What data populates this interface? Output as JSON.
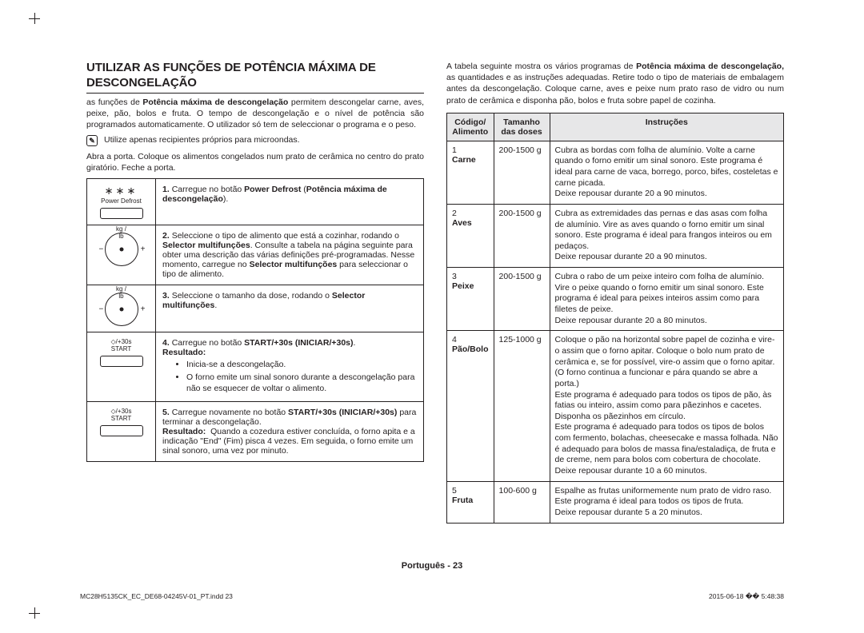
{
  "title": "UTILIZAR AS FUNÇÕES DE POTÊNCIA MÁXIMA DE DESCONGELAÇÃO",
  "intro1": "as funções de ",
  "intro1b": "Potência máxima de descongelação",
  "intro1c": " permitem descongelar carne, aves, peixe, pão, bolos e fruta. O tempo de descongelação e o nível de potência são programados automaticamente. O utilizador só tem de seleccionar o programa e o peso.",
  "noteIcon": "✎",
  "note": "Utilize apenas recipientes próprios para microondas.",
  "intro2": "Abra a porta. Coloque os alimentos congelados num prato de cerâmica no centro do prato giratório. Feche a porta.",
  "powerDefrostLabel": "Power Defrost",
  "step1": {
    "num": "1.",
    "t1": "Carregue no botão ",
    "b1": "Power Defrost",
    "t2": " (",
    "b2": "Potência máxima de descongelação",
    "t3": ")."
  },
  "dialTop": "kg / lb",
  "step2": {
    "num": "2.",
    "t1": "Seleccione o tipo de alimento que está a cozinhar, rodando o ",
    "b1": "Selector multifunções",
    "t2": ". Consulte a tabela na página seguinte para obter uma descrição das várias definições pré-programadas. Nesse momento, carregue no ",
    "b2": "Selector multifunções",
    "t3": " para seleccionar o tipo de alimento."
  },
  "step3": {
    "num": "3.",
    "t1": "Seleccione o tamanho da dose, rodando o ",
    "b1": "Selector multifunções",
    "t2": "."
  },
  "startLabel": "/+30s",
  "startSub": "START",
  "step4": {
    "num": "4.",
    "t1": "Carregue no botão ",
    "b1": "START/+30s (INICIAR/+30s)",
    "t2": ".",
    "res": "Resultado:",
    "bul": [
      "Inicia-se a descongelação.",
      "O forno emite um sinal sonoro durante a descongelação para não se esquecer de voltar o alimento."
    ]
  },
  "step5": {
    "num": "5.",
    "t1": "Carregue novamente no botão ",
    "b1": "START/+30s (INICIAR/+30s)",
    "t2": " para terminar a descongelação.",
    "res": "Resultado:",
    "t3": "Quando a cozedura estiver concluída, o forno apita e a indicação \"End\" (Fim) pisca 4 vezes. Em seguida, o forno emite um sinal sonoro, uma vez por minuto."
  },
  "rightIntro1": "A tabela seguinte mostra os vários programas de ",
  "rightIntroB": "Potência máxima de descongelação,",
  "rightIntro2": " as quantidades e as instruções adequadas. Retire todo o tipo de materiais de embalagem antes da descongelação. Coloque carne, aves e peixe num prato raso de vidro ou num prato de cerâmica e disponha pão, bolos e fruta sobre papel de cozinha.",
  "headers": {
    "code": "Código/ Alimento",
    "size": "Tamanho das doses",
    "instr": "Instruções"
  },
  "rows": [
    {
      "codeNum": "1",
      "codeName": "Carne",
      "size": "200-1500 g",
      "instr": "Cubra as bordas com folha de alumínio. Volte a carne quando o forno emitir um sinal sonoro. Este programa é ideal para carne de vaca, borrego, porco, bifes, costeletas e carne picada.\nDeixe repousar durante 20 a 90 minutos."
    },
    {
      "codeNum": "2",
      "codeName": "Aves",
      "size": "200-1500 g",
      "instr": "Cubra as extremidades das pernas e das asas com folha de alumínio. Vire as aves quando o forno emitir um sinal sonoro. Este programa é ideal para frangos inteiros ou em pedaços.\nDeixe repousar durante 20 a 90 minutos."
    },
    {
      "codeNum": "3",
      "codeName": "Peixe",
      "size": "200-1500 g",
      "instr": "Cubra o rabo de um peixe inteiro com folha de alumínio. Vire o peixe quando o forno emitir um sinal sonoro. Este programa é ideal para peixes inteiros assim como para filetes de peixe.\nDeixe repousar durante 20 a 80 minutos."
    },
    {
      "codeNum": "4",
      "codeName": "Pão/Bolo",
      "size": "125-1000 g",
      "instr": "Coloque o pão na horizontal sobre papel de cozinha e vire-o assim que o forno apitar. Coloque o bolo num prato de cerâmica e, se for possível, vire-o assim que o forno apitar.\n(O forno continua a funcionar e pára quando se abre a porta.)\nEste programa é adequado para todos os tipos de pão, às fatias ou inteiro, assim como para pãezinhos e cacetes. Disponha os pãezinhos em círculo.\nEste programa é adequado para todos os tipos de bolos com fermento, bolachas, cheesecake e massa folhada. Não é adequado para bolos de massa fina/estaladiça, de fruta e de creme, nem para bolos com cobertura de chocolate.\nDeixe repousar durante 10 a 60 minutos."
    },
    {
      "codeNum": "5",
      "codeName": "Fruta",
      "size": "100-600 g",
      "instr": "Espalhe as frutas uniformemente num prato de vidro raso.\nEste programa é ideal para todos os tipos de fruta.\nDeixe repousar durante 5 a 20 minutos."
    }
  ],
  "footer": {
    "lang": "Português - ",
    "page": "23"
  },
  "footline": {
    "file": "MC28H5135CK_EC_DE68-04245V-01_PT.indd   23",
    "date": "2015-06-18   �� 5:48:38"
  }
}
